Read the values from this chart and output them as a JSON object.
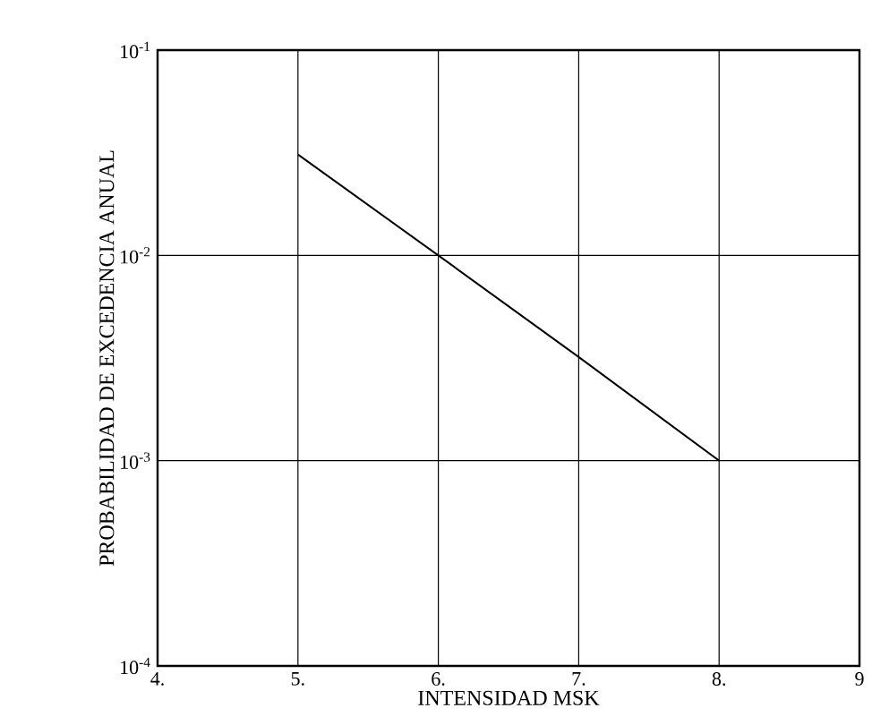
{
  "chart_data": {
    "type": "line",
    "xlabel": "INTENSIDAD MSK",
    "ylabel": "PROBABILIDAD DE EXCEDENCIA ANUAL",
    "x": [
      5,
      6,
      7,
      8
    ],
    "series": [
      {
        "color": "#000000",
        "values": [
          0.031,
          0.01,
          0.0032,
          0.001
        ]
      }
    ],
    "log": "y",
    "grid": true,
    "marker": "none",
    "line_style": "solid",
    "xlim": [
      4,
      9
    ],
    "xticks": [
      {
        "value": 4,
        "label": "4."
      },
      {
        "value": 5,
        "label": "5."
      },
      {
        "value": 6,
        "label": "6."
      },
      {
        "value": 7,
        "label": "7."
      },
      {
        "value": 8,
        "label": "8."
      },
      {
        "value": 9,
        "label": "9"
      }
    ],
    "ylim": [
      0.0001,
      0.1
    ],
    "yticks": [
      {
        "value": 0.0001,
        "label": "10$^{-4}$"
      },
      {
        "value": 0.001,
        "label": "10$^{-3}$"
      },
      {
        "value": 0.01,
        "label": "10$^{-2}$"
      },
      {
        "value": 0.1,
        "label": "10$^{-1}$"
      }
    ]
  }
}
